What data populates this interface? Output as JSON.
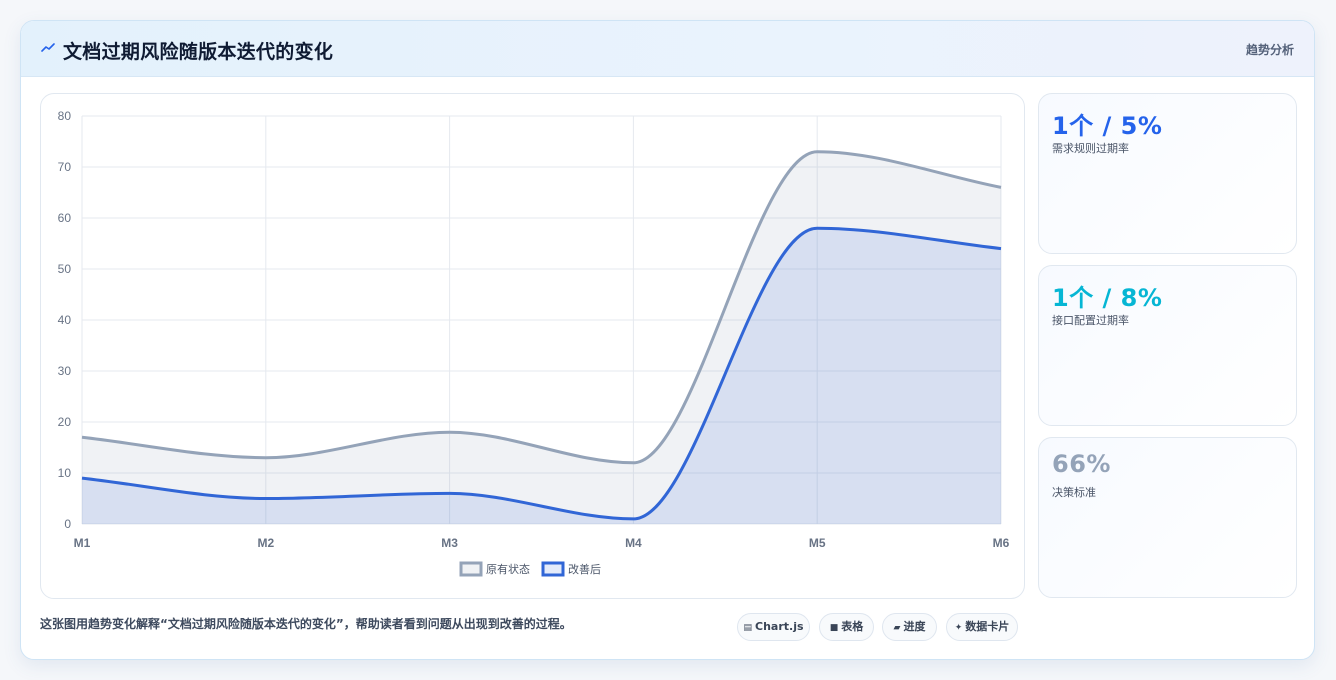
{
  "header": {
    "title": "文档过期风险随版本迭代的变化",
    "tag": "趋势分析"
  },
  "chart_data": {
    "type": "area",
    "categories": [
      "M1",
      "M2",
      "M3",
      "M4",
      "M5",
      "M6"
    ],
    "series": [
      {
        "name": "原有状态",
        "values": [
          17,
          13,
          18,
          12,
          73,
          66
        ],
        "color": "#94a3b8"
      },
      {
        "name": "改善后",
        "values": [
          9,
          5,
          6,
          1,
          58,
          54
        ],
        "color": "#3166d6"
      }
    ],
    "ylim": [
      0,
      80
    ],
    "yticks": [
      0,
      10,
      20,
      30,
      40,
      50,
      60,
      70,
      80
    ],
    "grid": true,
    "legend": "bottom-center"
  },
  "stats": [
    {
      "value": "1个 / 5%",
      "label": "需求规则过期率",
      "color": "#2563eb"
    },
    {
      "value": "1个 / 8%",
      "label": "接口配置过期率",
      "color": "#06b6d4"
    },
    {
      "value": "66%",
      "label": "决策标准",
      "color": "#94a3b8"
    }
  ],
  "caption": "这张图用趋势变化解释“文档过期风险随版本迭代的变化”，帮助读者看到问题从出现到改善的过程。",
  "chips": [
    {
      "icon": "▤",
      "label": "Chart.js"
    },
    {
      "icon": "■",
      "label": "表格"
    },
    {
      "icon": "▰",
      "label": "进度"
    },
    {
      "icon": "✦",
      "label": "数据卡片"
    }
  ]
}
